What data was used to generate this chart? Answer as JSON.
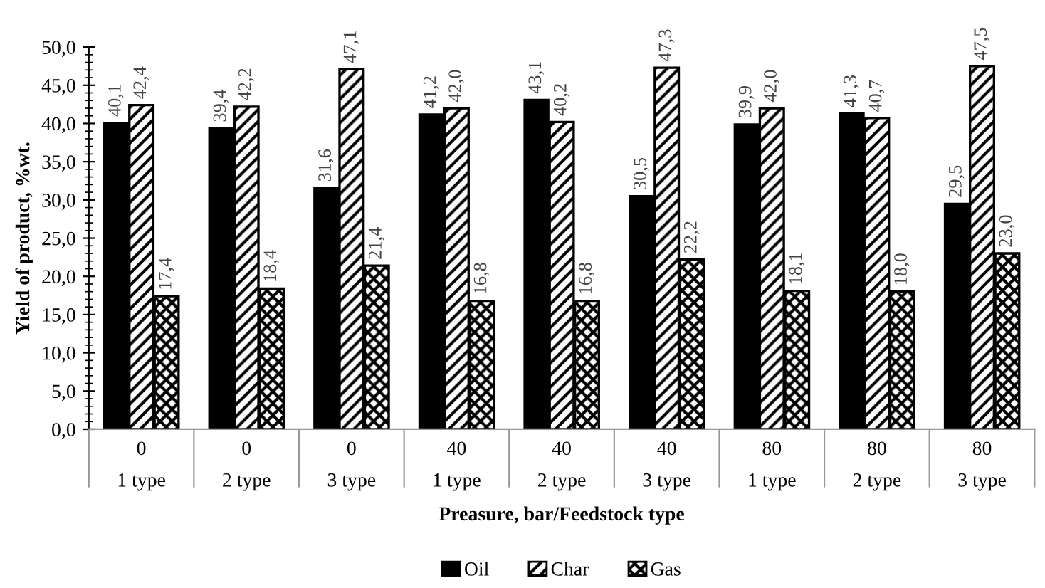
{
  "chart_data": {
    "type": "bar",
    "xlabel": "Preasure, bar/Feedstock type",
    "ylabel": "Yield of product, %wt.",
    "categories": [
      "0\n1 type",
      "0\n2 type",
      "0\n3 type",
      "40\n1 type",
      "40\n2 type",
      "40\n3 type",
      "80\n1 type",
      "80\n2 type",
      "80\n3 type"
    ],
    "series": [
      {
        "name": "Oil",
        "color": "#000000",
        "values": [
          40.1,
          39.4,
          31.6,
          41.2,
          43.1,
          30.5,
          39.9,
          41.3,
          29.5
        ],
        "value_labels": [
          "40,1",
          "39,4",
          "31,6",
          "41,2",
          "43,1",
          "30,5",
          "39,9",
          "41,3",
          "29,5"
        ]
      },
      {
        "name": "Char",
        "color": "#000000",
        "values": [
          42.4,
          42.2,
          47.1,
          42.0,
          40.2,
          47.3,
          42.0,
          40.7,
          47.5
        ],
        "value_labels": [
          "42,4",
          "42,2",
          "47,1",
          "42,0",
          "40,2",
          "47,3",
          "42,0",
          "40,7",
          "47,5"
        ]
      },
      {
        "name": "Gas",
        "color": "#000000",
        "values": [
          17.4,
          18.4,
          21.4,
          16.8,
          16.8,
          22.2,
          18.1,
          18.0,
          23.0
        ],
        "value_labels": [
          "17,4",
          "18,4",
          "21,4",
          "16,8",
          "16,8",
          "22,2",
          "18,1",
          "18,0",
          "23,0"
        ]
      }
    ],
    "ylim": [
      0,
      50
    ],
    "yticks": [
      {
        "value": 0,
        "label": "0,0"
      },
      {
        "value": 5,
        "label": "5,0"
      },
      {
        "value": 10,
        "label": "10,0"
      },
      {
        "value": 15,
        "label": "15,0"
      },
      {
        "value": 20,
        "label": "20,0"
      },
      {
        "value": 25,
        "label": "25,0"
      },
      {
        "value": 30,
        "label": "30,0"
      },
      {
        "value": 35,
        "label": "35,0"
      },
      {
        "value": 40,
        "label": "40,0"
      },
      {
        "value": 45,
        "label": "45,0"
      },
      {
        "value": 50,
        "label": "50,0"
      }
    ],
    "grid": false,
    "legend": "bottom"
  }
}
